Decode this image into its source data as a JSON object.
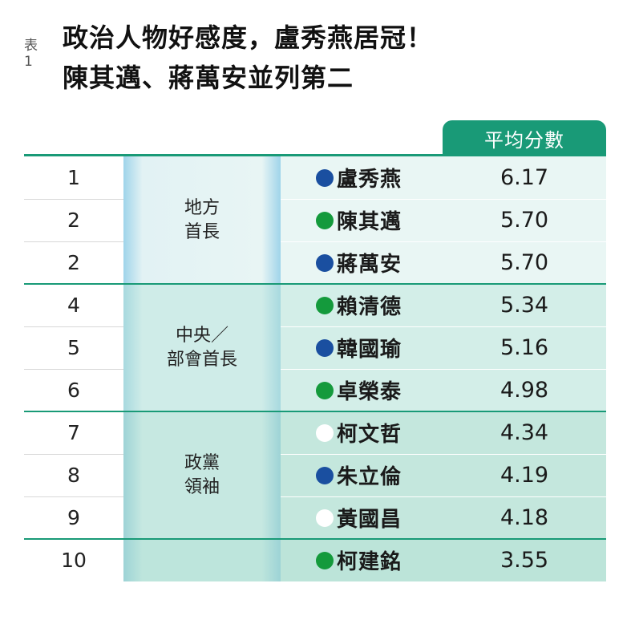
{
  "title": {
    "tag": "表1",
    "line1": "政治人物好感度，盧秀燕居冠！",
    "line2": "陳其邁、蔣萬安並列第二"
  },
  "score_header": "平均分數",
  "colors": {
    "accent": "#199a77",
    "party_blue": "#1a4fa0",
    "party_green": "#149a3c",
    "party_white": "#ffffff"
  },
  "groups": [
    {
      "label": "地方\n首長",
      "rows": [
        0,
        1,
        2
      ]
    },
    {
      "label": "中央／\n部會首長",
      "rows": [
        3,
        4,
        5
      ]
    },
    {
      "label": "政黨\n領袖",
      "rows": [
        6,
        7,
        8
      ]
    },
    {
      "label": "",
      "rows": [
        9
      ]
    }
  ],
  "rows": [
    {
      "rank": "1",
      "name": "盧秀燕",
      "party_color": "#1a4fa0",
      "score": "6.17"
    },
    {
      "rank": "2",
      "name": "陳其邁",
      "party_color": "#149a3c",
      "score": "5.70"
    },
    {
      "rank": "2",
      "name": "蔣萬安",
      "party_color": "#1a4fa0",
      "score": "5.70"
    },
    {
      "rank": "4",
      "name": "賴清德",
      "party_color": "#149a3c",
      "score": "5.34"
    },
    {
      "rank": "5",
      "name": "韓國瑜",
      "party_color": "#1a4fa0",
      "score": "5.16"
    },
    {
      "rank": "6",
      "name": "卓榮泰",
      "party_color": "#149a3c",
      "score": "4.98"
    },
    {
      "rank": "7",
      "name": "柯文哲",
      "party_color": "#ffffff",
      "score": "4.34"
    },
    {
      "rank": "8",
      "name": "朱立倫",
      "party_color": "#1a4fa0",
      "score": "4.19"
    },
    {
      "rank": "9",
      "name": "黃國昌",
      "party_color": "#ffffff",
      "score": "4.18"
    },
    {
      "rank": "10",
      "name": "柯建銘",
      "party_color": "#149a3c",
      "score": "3.55"
    }
  ]
}
